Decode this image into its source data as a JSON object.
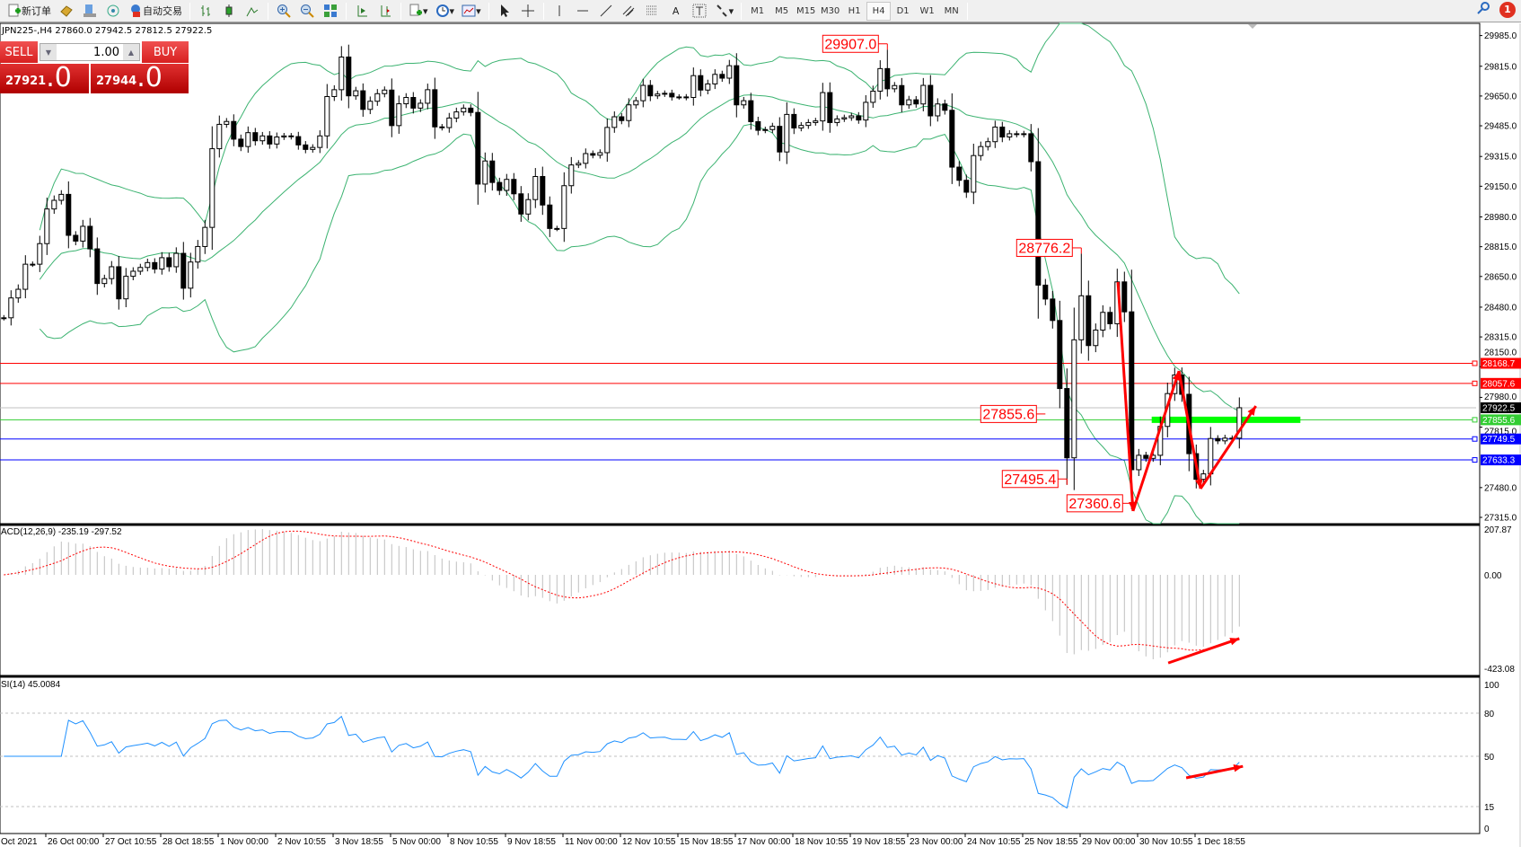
{
  "toolbar": {
    "new_order": "新订单",
    "auto_trading": "自动交易",
    "timeframes": [
      "M1",
      "M5",
      "M15",
      "M30",
      "H1",
      "H4",
      "D1",
      "W1",
      "MN"
    ],
    "active_timeframe": "H4",
    "notification_count": "1"
  },
  "chart_header": "JPN225-,H4  27860.0 27942.5 27812.5 27922.5",
  "one_click": {
    "sell_label": "SELL",
    "buy_label": "BUY",
    "lot": "1.00",
    "sell_price_main": "27921",
    "sell_price_big": ".0",
    "buy_price_main": "27944",
    "buy_price_big": ".0"
  },
  "indicators": {
    "macd_label": "ACD(12,26,9) -235.19 -297.52",
    "rsi_label": "SI(14) 45.0084"
  },
  "colors": {
    "bollinger": "#3cb371",
    "macd_histogram": "#c0c0c0",
    "macd_signal": "#ff0000",
    "rsi": "#1e90ff",
    "annotation": "#ff0000",
    "zone": "#00ff00"
  },
  "chart_data": {
    "type": "candlestick",
    "symbol": "JPN225-",
    "timeframe": "H4",
    "close": [
      28421,
      28531,
      28579,
      28718,
      28718,
      28832,
      29024,
      29072,
      29105,
      28878,
      28846,
      28928,
      28803,
      28611,
      28638,
      28704,
      28526,
      28651,
      28679,
      28700,
      28727,
      28691,
      28754,
      28704,
      28778,
      28585,
      28730,
      28816,
      28922,
      29358,
      29493,
      29509,
      29411,
      29370,
      29447,
      29402,
      29429,
      29384,
      29423,
      29429,
      29425,
      29379,
      29354,
      29365,
      29429,
      29647,
      29685,
      29866,
      29651,
      29679,
      29576,
      29621,
      29663,
      29683,
      29486,
      29607,
      29642,
      29583,
      29610,
      29685,
      29479,
      29475,
      29528,
      29562,
      29583,
      29559,
      29162,
      29290,
      29171,
      29127,
      29188,
      29108,
      28996,
      29076,
      29204,
      29046,
      28916,
      28916,
      29153,
      29268,
      29277,
      29331,
      29322,
      29336,
      29476,
      29535,
      29514,
      29601,
      29624,
      29709,
      29651,
      29661,
      29665,
      29645,
      29645,
      29642,
      29763,
      29683,
      29717,
      29770,
      29749,
      29818,
      29601,
      29624,
      29508,
      29460,
      29464,
      29482,
      29340,
      29548,
      29473,
      29487,
      29503,
      29512,
      29669,
      29503,
      29523,
      29530,
      29540,
      29517,
      29615,
      29677,
      29802,
      29690,
      29708,
      29601,
      29629,
      29606,
      29709,
      29540,
      29606,
      29571,
      29256,
      29183,
      29117,
      29320,
      29370,
      29397,
      29478,
      29423,
      29441,
      29437,
      29441,
      29286,
      28602,
      28525,
      28406,
      28029,
      27645,
      28299,
      28543,
      28267,
      28353,
      28451,
      28388,
      28620,
      28454,
      27579,
      27659,
      27642,
      27659,
      27819,
      28001,
      28104,
      27997,
      27668,
      27526,
      27556,
      27752,
      27739,
      27754,
      27754,
      27922.5
    ],
    "price_axis": [
      "29985.0",
      "29815.0",
      "29650.0",
      "29485.0",
      "29315.0",
      "29150.0",
      "28980.0",
      "28815.0",
      "28650.0",
      "28480.0",
      "28315.0",
      "28150.0",
      "27980.0",
      "27815.0",
      "27480.0",
      "27315.0"
    ],
    "time_axis": [
      "Oct 2021",
      "26 Oct 00:00",
      "27 Oct 10:55",
      "28 Oct 18:55",
      "1 Nov 00:00",
      "2 Nov 10:55",
      "3 Nov 18:55",
      "5 Nov 00:00",
      "8 Nov 10:55",
      "9 Nov 18:55",
      "11 Nov 00:00",
      "12 Nov 10:55",
      "15 Nov 18:55",
      "17 Nov 00:00",
      "18 Nov 10:55",
      "19 Nov 18:55",
      "23 Nov 00:00",
      "24 Nov 10:55",
      "25 Nov 18:55",
      "29 Nov 00:00",
      "30 Nov 10:55",
      "1 Dec 18:55"
    ],
    "horizontal_lines": [
      {
        "price": 28168.7,
        "label": "28168.7",
        "color": "#ff0000",
        "label_bg": "#ff0000"
      },
      {
        "price": 28057.6,
        "label": "28057.6",
        "color": "#ff0000",
        "label_bg": "#ff0000"
      },
      {
        "price": 27922.5,
        "label": "27922.5",
        "color": "#c0c0c0",
        "label_bg": "#000000"
      },
      {
        "price": 27855.6,
        "label": "27855.6",
        "color": "#32cd32",
        "label_bg": "#32cd32"
      },
      {
        "price": 27749.5,
        "label": "27749.5",
        "color": "#0000ff",
        "label_bg": "#0000ff"
      },
      {
        "price": 27633.3,
        "label": "27633.3",
        "color": "#0000ff",
        "label_bg": "#0000ff"
      }
    ],
    "price_labels": [
      {
        "text": "29907.0",
        "price": 29907.0,
        "bar": 124,
        "side": "high"
      },
      {
        "text": "28776.2",
        "price": 28776.2,
        "bar": 151,
        "side": "high"
      },
      {
        "text": "27855.6",
        "price": 27855.6,
        "bar": 146,
        "side": "level"
      },
      {
        "text": "27495.4",
        "price": 27495.4,
        "bar": 149,
        "side": "low"
      },
      {
        "text": "27360.6",
        "price": 27360.6,
        "bar": 158,
        "side": "low"
      }
    ],
    "zone": {
      "price": 27855.6,
      "bar_from": 160.8,
      "bar_to": 181.5
    },
    "arrows_main": [
      [
        156.1,
        28619
      ],
      [
        158.2,
        27350
      ],
      [
        164.6,
        28126
      ],
      [
        167.6,
        27474
      ],
      [
        175.3,
        27932
      ]
    ],
    "arrow_macd": [
      [
        163.1,
        -400
      ],
      [
        173,
        -289
      ]
    ],
    "arrow_rsi": [
      [
        165.6,
        35
      ],
      [
        173.5,
        43
      ]
    ],
    "bollinger": {
      "period": 20,
      "deviations": 2
    },
    "macd": {
      "fast": 12,
      "slow": 26,
      "signal": 9,
      "axis": [
        "207.87",
        "0.00",
        "-423.08"
      ],
      "max": 207.87,
      "min": -423.08
    },
    "rsi": {
      "period": 14,
      "axis": [
        "100",
        "80",
        "50",
        "15",
        "0"
      ],
      "levels": [
        80,
        50,
        15
      ]
    },
    "price_range": [
      27315,
      29985
    ]
  }
}
